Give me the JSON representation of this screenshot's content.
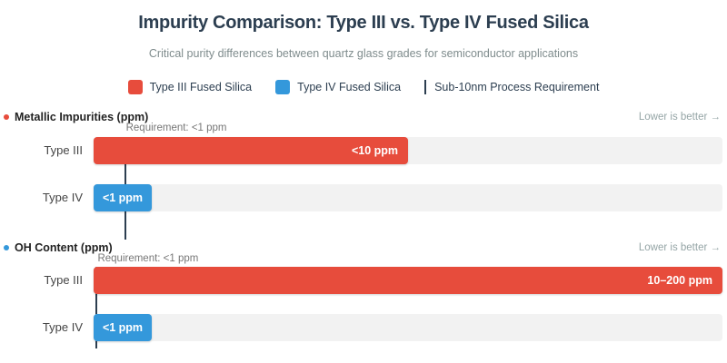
{
  "header": {
    "title": "Impurity Comparison: Type III vs. Type IV Fused Silica",
    "subtitle": "Critical purity differences between quartz glass grades for semiconductor applications"
  },
  "legend": {
    "items": [
      {
        "label": "Type III Fused Silica",
        "color": "#e74c3c",
        "swatch": "square"
      },
      {
        "label": "Type IV Fused Silica",
        "color": "#3498db",
        "swatch": "square"
      },
      {
        "label": "Sub-10nm Process Requirement",
        "color": "#2c3e50",
        "swatch": "vertical-line"
      }
    ]
  },
  "chart_data": [
    {
      "type": "bar",
      "orientation": "horizontal",
      "title": "Metallic Impurities (ppm)",
      "bullet_color": "#e74c3c",
      "note": "Lower is better →",
      "categories": [
        "Type III",
        "Type IV"
      ],
      "values": [
        10,
        1
      ],
      "value_labels": [
        "<10 ppm",
        "<1 ppm"
      ],
      "bar_colors": [
        "#e74c3c",
        "#3498db"
      ],
      "track_color": "#f2f2f2",
      "xlim": [
        0,
        20
      ],
      "requirement": {
        "value": 1,
        "label": "Requirement: <1 ppm",
        "line_color": "#2c3e50"
      }
    },
    {
      "type": "bar",
      "orientation": "horizontal",
      "title": "OH Content (ppm)",
      "bullet_color": "#3498db",
      "note": "Lower is better →",
      "categories": [
        "Type III",
        "Type IV"
      ],
      "values": [
        200,
        1
      ],
      "value_labels": [
        "10–200 ppm",
        "<1 ppm"
      ],
      "bar_colors": [
        "#e74c3c",
        "#3498db"
      ],
      "track_color": "#f2f2f2",
      "xlim": [
        0,
        200
      ],
      "requirement": {
        "value": 1,
        "label": "Requirement: <1 ppm",
        "line_color": "#2c3e50"
      }
    }
  ]
}
